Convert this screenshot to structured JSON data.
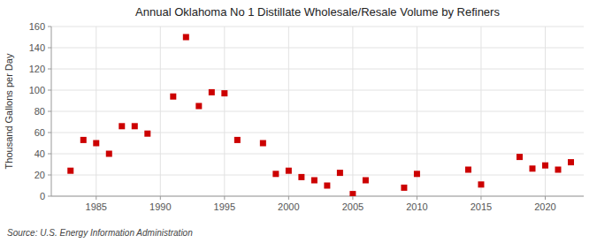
{
  "chart_data": {
    "type": "scatter",
    "title": "Annual Oklahoma No 1 Distillate Wholesale/Resale Volume by Refiners",
    "ylabel": "Thousand Gallons per Day",
    "source": "Source: U.S. Energy Information Administration",
    "x": [
      1983,
      1984,
      1985,
      1986,
      1987,
      1988,
      1989,
      1991,
      1992,
      1993,
      1994,
      1995,
      1996,
      1998,
      1999,
      2000,
      2001,
      2002,
      2003,
      2004,
      2005,
      2006,
      2009,
      2010,
      2014,
      2015,
      2018,
      2019,
      2020,
      2021,
      2022
    ],
    "values": [
      24,
      53,
      50,
      40,
      66,
      66,
      59,
      94,
      150,
      85,
      98,
      97,
      53,
      50,
      21,
      24,
      18,
      15,
      10,
      22,
      2,
      15,
      8,
      21,
      25,
      11,
      37,
      26,
      29,
      25,
      32
    ],
    "color": "#cc0000",
    "marker": "square",
    "xlim": [
      1981.5,
      2023
    ],
    "ylim": [
      0,
      160
    ],
    "xticks": [
      1985,
      1990,
      1995,
      2000,
      2005,
      2010,
      2015,
      2020
    ],
    "yticks": [
      0,
      20,
      40,
      60,
      80,
      100,
      120,
      140,
      160
    ],
    "grid": true
  }
}
